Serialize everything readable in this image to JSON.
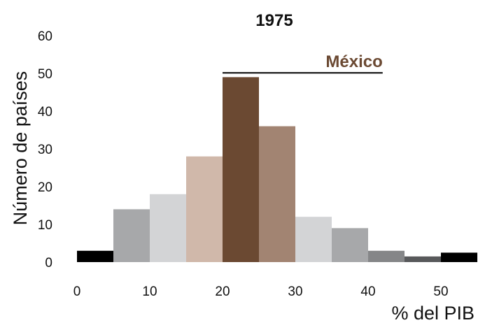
{
  "chart_data": {
    "type": "bar",
    "title": "1975",
    "xlabel": "% del PIB",
    "ylabel": "Número de países",
    "xlim": [
      0,
      55
    ],
    "ylim": [
      0,
      60
    ],
    "x_ticks": [
      "0",
      "10",
      "20",
      "30",
      "40",
      "50"
    ],
    "y_ticks": [
      "0",
      "10",
      "20",
      "30",
      "40",
      "50",
      "60"
    ],
    "bins": [
      {
        "x0": 0,
        "x1": 5,
        "value": 3,
        "color": "#000000"
      },
      {
        "x0": 5,
        "x1": 10,
        "value": 14,
        "color": "#a7a8aa"
      },
      {
        "x0": 10,
        "x1": 15,
        "value": 18,
        "color": "#d3d4d6"
      },
      {
        "x0": 15,
        "x1": 20,
        "value": 28,
        "color": "#d0b8aa"
      },
      {
        "x0": 20,
        "x1": 25,
        "value": 49,
        "color": "#6b4932"
      },
      {
        "x0": 25,
        "x1": 30,
        "value": 36,
        "color": "#a28472"
      },
      {
        "x0": 30,
        "x1": 35,
        "value": 12,
        "color": "#d3d4d6"
      },
      {
        "x0": 35,
        "x1": 40,
        "value": 9,
        "color": "#a7a8aa"
      },
      {
        "x0": 40,
        "x1": 45,
        "value": 3,
        "color": "#858688"
      },
      {
        "x0": 45,
        "x1": 50,
        "value": 1.5,
        "color": "#58595b"
      },
      {
        "x0": 50,
        "x1": 55,
        "value": 2.5,
        "color": "#000000"
      }
    ],
    "grid": false,
    "annotation": {
      "label": "México",
      "color": "#6b4932",
      "range": [
        20,
        42
      ],
      "y": 52
    }
  }
}
